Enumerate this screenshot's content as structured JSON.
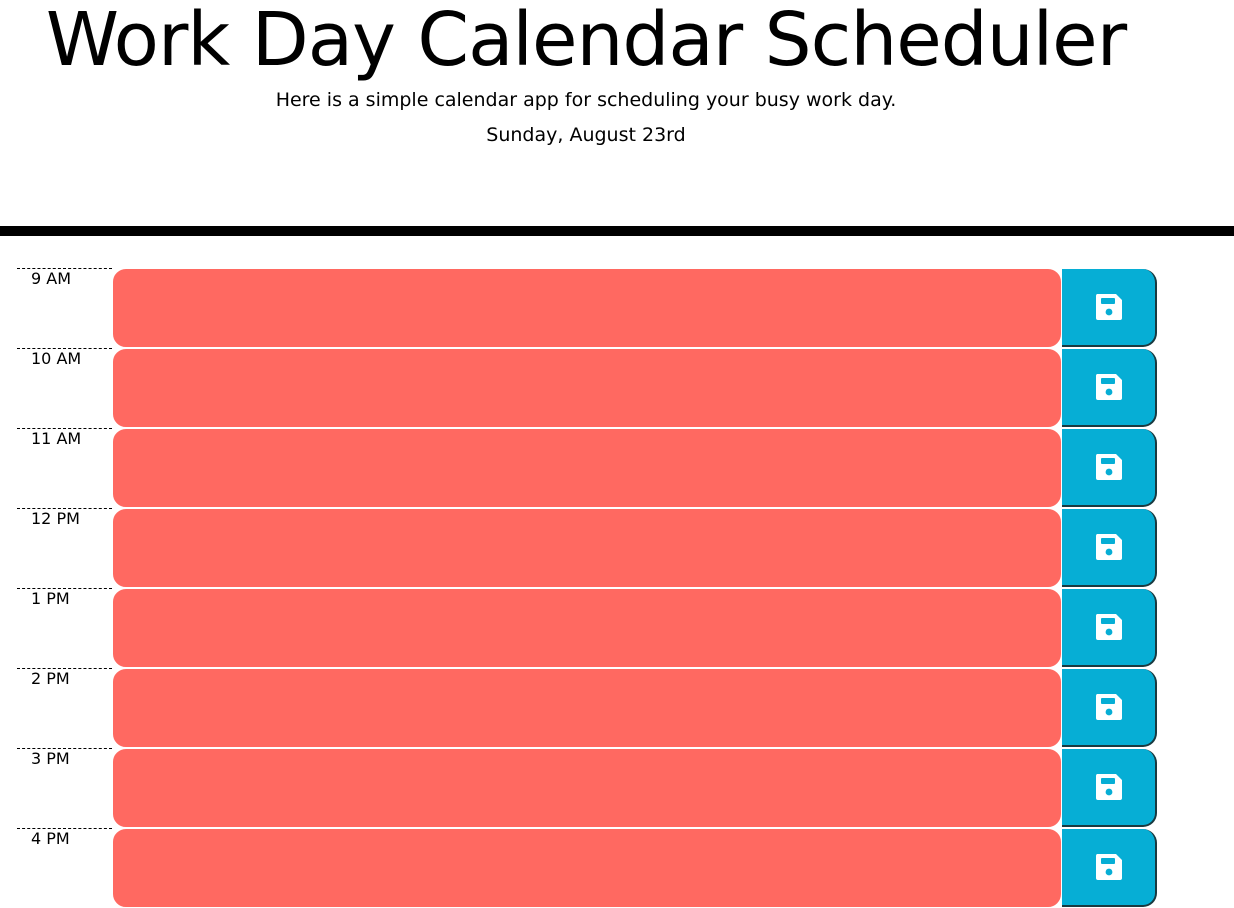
{
  "header": {
    "title": "Work Day Calendar Scheduler",
    "subtitle": "Here is a simple calendar app for scheduling your busy work day.",
    "current_date": "Sunday, August 23rd"
  },
  "schedule": {
    "time_blocks": [
      {
        "hour": "9 AM",
        "text": "",
        "status": "past"
      },
      {
        "hour": "10 AM",
        "text": "",
        "status": "past"
      },
      {
        "hour": "11 AM",
        "text": "",
        "status": "past"
      },
      {
        "hour": "12 PM",
        "text": "",
        "status": "past"
      },
      {
        "hour": "1 PM",
        "text": "",
        "status": "past"
      },
      {
        "hour": "2 PM",
        "text": "",
        "status": "past"
      },
      {
        "hour": "3 PM",
        "text": "",
        "status": "past"
      },
      {
        "hour": "4 PM",
        "text": "",
        "status": "past"
      }
    ],
    "save_icon": "floppy-disk-icon"
  },
  "colors": {
    "block": "#ff6961",
    "save_button": "#06aed5",
    "divider": "#000000"
  }
}
